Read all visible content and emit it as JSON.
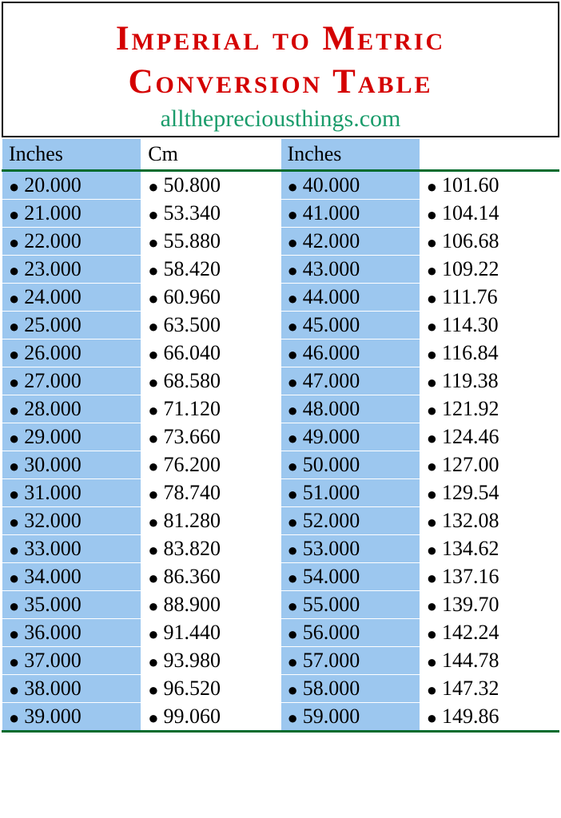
{
  "header": {
    "title_line1": "Imperial to Metric",
    "title_line2": "Conversion Table",
    "subtitle": "allthepreciousthings.com"
  },
  "table": {
    "columns": [
      "Inches",
      "Cm",
      "Inches",
      ""
    ],
    "column_bg": [
      "#9cc7ef",
      "#ffffff",
      "#9cc7ef",
      "#ffffff"
    ],
    "header_border_color": "#006b2d",
    "row_border_color": "#ffffff",
    "cell_font_size": 26,
    "bullet_glyph": "●",
    "rows": [
      [
        "20.000",
        "50.800",
        "40.000",
        "101.60"
      ],
      [
        "21.000",
        "53.340",
        "41.000",
        "104.14"
      ],
      [
        "22.000",
        "55.880",
        "42.000",
        "106.68"
      ],
      [
        "23.000",
        "58.420",
        "43.000",
        "109.22"
      ],
      [
        "24.000",
        "60.960",
        "44.000",
        "111.76"
      ],
      [
        "25.000",
        "63.500",
        "45.000",
        "114.30"
      ],
      [
        "26.000",
        "66.040",
        "46.000",
        "116.84"
      ],
      [
        "27.000",
        "68.580",
        "47.000",
        "119.38"
      ],
      [
        "28.000",
        "71.120",
        "48.000",
        "121.92"
      ],
      [
        "29.000",
        "73.660",
        "49.000",
        "124.46"
      ],
      [
        "30.000",
        "76.200",
        "50.000",
        "127.00"
      ],
      [
        "31.000",
        "78.740",
        "51.000",
        "129.54"
      ],
      [
        "32.000",
        "81.280",
        "52.000",
        "132.08"
      ],
      [
        "33.000",
        "83.820",
        "53.000",
        "134.62"
      ],
      [
        "34.000",
        "86.360",
        "54.000",
        "137.16"
      ],
      [
        "35.000",
        "88.900",
        "55.000",
        "139.70"
      ],
      [
        "36.000",
        "91.440",
        "56.000",
        "142.24"
      ],
      [
        "37.000",
        "93.980",
        "57.000",
        "144.78"
      ],
      [
        "38.000",
        "96.520",
        "58.000",
        "147.32"
      ],
      [
        "39.000",
        "99.060",
        "59.000",
        "149.86"
      ]
    ]
  },
  "colors": {
    "title": "#d40000",
    "subtitle": "#1a9c6b",
    "col_blue": "#9cc7ef",
    "col_white": "#ffffff",
    "border_green": "#006b2d"
  }
}
